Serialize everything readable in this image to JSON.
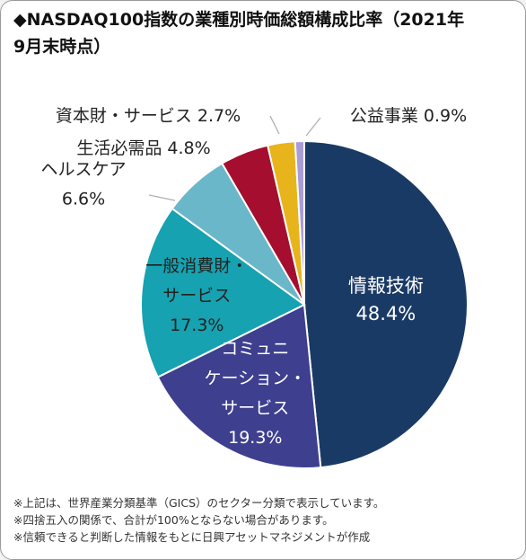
{
  "title_lines": [
    "◆NASDAQ100指数の業種別時価総額構成比率（2021年",
    "9月末時点）"
  ],
  "chart_data": {
    "type": "pie",
    "title": "◆NASDAQ100指数の業種別時価総額構成比率（2021年9月末時点）",
    "start_angle_deg": 0,
    "direction": "clockwise",
    "unit": "%",
    "slices": [
      {
        "id": "info-tech",
        "label_lines": [
          "情報技術"
        ],
        "value": 48.4,
        "display": "48.4%",
        "color": "#1a3a66",
        "label_color": "#ffffff"
      },
      {
        "id": "communication-services",
        "label_lines": [
          "コミュニ",
          "ケーション・",
          "サービス"
        ],
        "value": 19.3,
        "display": "19.3%",
        "color": "#3e3f8f",
        "label_color": "#ffffff"
      },
      {
        "id": "consumer-discretionary",
        "label_lines": [
          "一般消費財・",
          "サービス"
        ],
        "value": 17.3,
        "display": "17.3%",
        "color": "#16a2b0",
        "label_color": "#222222"
      },
      {
        "id": "health-care",
        "label_lines": [
          "ヘルスケア"
        ],
        "value": 6.6,
        "display": "6.6%",
        "color": "#6ab7c9",
        "label_color": "#222222"
      },
      {
        "id": "consumer-staples",
        "label_lines": [
          "生活必需品 4.8%"
        ],
        "value": 4.8,
        "display": "",
        "color": "#a50e2e",
        "label_color": "#222222"
      },
      {
        "id": "industrials",
        "label_lines": [
          "資本財・サービス 2.7%"
        ],
        "value": 2.7,
        "display": "",
        "color": "#e8b41c",
        "label_color": "#222222"
      },
      {
        "id": "utilities",
        "label_lines": [
          "公益事業 0.9%"
        ],
        "value": 0.9,
        "display": "",
        "color": "#a99dd6",
        "label_color": "#222222"
      }
    ]
  },
  "notes": [
    "※上記は、世界産業分類基準（GICS）のセクター分類で表示しています。",
    "※四捨五入の関係で、合計が100%とならない場合があります。",
    "※信頼できると判断した情報をもとに日興アセットマネジメントが作成"
  ]
}
